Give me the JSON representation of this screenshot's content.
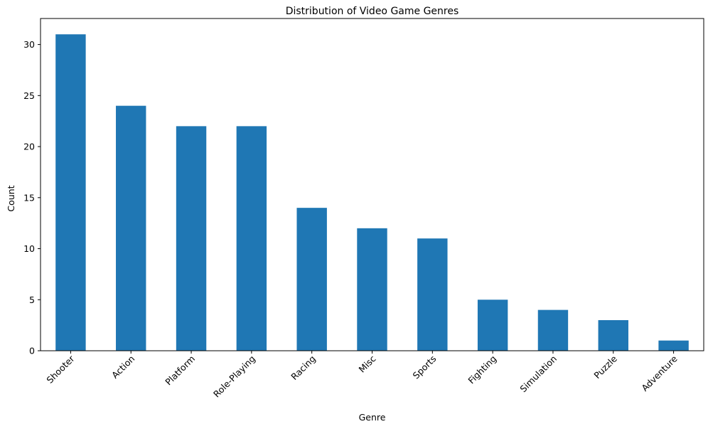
{
  "chart_data": {
    "type": "bar",
    "title": "Distribution of Video Game Genres",
    "xlabel": "Genre",
    "ylabel": "Count",
    "categories": [
      "Shooter",
      "Action",
      "Platform",
      "Role-Playing",
      "Racing",
      "Misc",
      "Sports",
      "Fighting",
      "Simulation",
      "Puzzle",
      "Adventure"
    ],
    "values": [
      31,
      24,
      22,
      22,
      14,
      12,
      11,
      5,
      4,
      3,
      1
    ],
    "ylim": [
      0,
      32.55
    ],
    "yticks": [
      0,
      5,
      10,
      15,
      20,
      25,
      30
    ],
    "grid": false,
    "legend": "none",
    "bar_color": "#1f77b4",
    "x_tick_rotation_deg": 45
  }
}
